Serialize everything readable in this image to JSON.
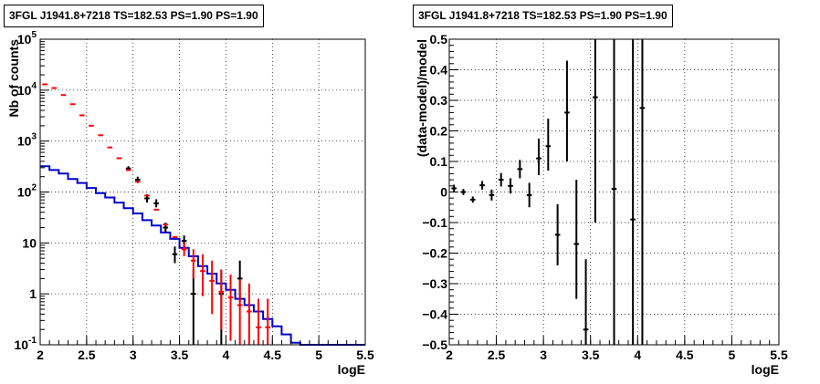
{
  "chart_data": [
    {
      "type": "line",
      "title": "3FGL J1941.8+7218 TS=182.53 PS=1.90 PS=1.90",
      "xlabel": "logE",
      "ylabel": "Nb of counts",
      "xlim": [
        2,
        5.5
      ],
      "ylim": [
        0.1,
        100000
      ],
      "yscale": "log",
      "grid": true,
      "x_ticks": [
        "2",
        "2.5",
        "3",
        "3.5",
        "4",
        "4.5",
        "5",
        "5.5"
      ],
      "y_ticks": [
        {
          "base": "10",
          "exp": "-1"
        },
        {
          "base": "1",
          "exp": ""
        },
        {
          "base": "10",
          "exp": ""
        },
        {
          "base": "10",
          "exp": "2"
        },
        {
          "base": "10",
          "exp": "3"
        },
        {
          "base": "10",
          "exp": "4"
        },
        {
          "base": "10",
          "exp": "5"
        }
      ],
      "bin_edges": [
        2.0,
        2.1,
        2.2,
        2.3,
        2.4,
        2.5,
        2.6,
        2.7,
        2.8,
        2.9,
        3.0,
        3.1,
        3.2,
        3.3,
        3.4,
        3.5,
        3.6,
        3.7,
        3.8,
        3.9,
        4.0,
        4.1,
        4.2,
        4.3,
        4.4,
        4.5,
        4.6,
        4.7,
        4.8,
        4.9,
        5.0,
        5.1,
        5.2,
        5.3,
        5.4,
        5.5
      ],
      "series": [
        {
          "role": "model-total",
          "color": "#ff0000",
          "points": [
            {
              "x": 2.05,
              "y": 13000,
              "lo": 13000,
              "hi": 13000
            },
            {
              "x": 2.15,
              "y": 11000,
              "lo": 11000,
              "hi": 11000
            },
            {
              "x": 2.25,
              "y": 8000,
              "lo": 8000,
              "hi": 8000
            },
            {
              "x": 2.35,
              "y": 5300,
              "lo": 5300,
              "hi": 5300
            },
            {
              "x": 2.45,
              "y": 3200,
              "lo": 3200,
              "hi": 3200
            },
            {
              "x": 2.55,
              "y": 2000,
              "lo": 2000,
              "hi": 2000
            },
            {
              "x": 2.65,
              "y": 1300,
              "lo": 1300,
              "hi": 1300
            },
            {
              "x": 2.75,
              "y": 750,
              "lo": 750,
              "hi": 750
            },
            {
              "x": 2.85,
              "y": 460,
              "lo": 460,
              "hi": 460
            },
            {
              "x": 2.95,
              "y": 270,
              "lo": 270,
              "hi": 270
            },
            {
              "x": 3.05,
              "y": 160,
              "lo": 160,
              "hi": 160
            },
            {
              "x": 3.15,
              "y": 85,
              "lo": 85,
              "hi": 85
            },
            {
              "x": 3.25,
              "y": 45,
              "lo": 45,
              "hi": 45
            },
            {
              "x": 3.35,
              "y": 23,
              "lo": 23,
              "hi": 23
            },
            {
              "x": 3.45,
              "y": 13,
              "lo": 13,
              "hi": 13
            },
            {
              "x": 3.55,
              "y": 7.5,
              "lo": 5.5,
              "hi": 10
            },
            {
              "x": 3.65,
              "y": 4.5,
              "lo": 2,
              "hi": 7.5
            },
            {
              "x": 3.75,
              "y": 2.8,
              "lo": 0.9,
              "hi": 6
            },
            {
              "x": 3.85,
              "y": 1.8,
              "lo": 0.4,
              "hi": 4.5
            },
            {
              "x": 3.95,
              "y": 1.1,
              "lo": 0.2,
              "hi": 3
            },
            {
              "x": 4.05,
              "y": 0.85,
              "lo": 0.12,
              "hi": 2.4
            },
            {
              "x": 4.15,
              "y": 0.6,
              "lo": 0.1,
              "hi": 1.9
            },
            {
              "x": 4.25,
              "y": 0.45,
              "lo": 0.1,
              "hi": 1.6
            },
            {
              "x": 4.35,
              "y": 0.22,
              "lo": 0.1,
              "hi": 0.8
            },
            {
              "x": 4.45,
              "y": 0.22,
              "lo": 0.1,
              "hi": 0.8
            }
          ]
        },
        {
          "role": "data",
          "color": "#000000",
          "points": [
            {
              "x": 2.95,
              "y": 290,
              "lo": 260,
              "hi": 320
            },
            {
              "x": 3.05,
              "y": 175,
              "lo": 150,
              "hi": 200
            },
            {
              "x": 3.15,
              "y": 75,
              "lo": 62,
              "hi": 90
            },
            {
              "x": 3.25,
              "y": 60,
              "lo": 50,
              "hi": 72
            },
            {
              "x": 3.35,
              "y": 20,
              "lo": 16,
              "hi": 25
            },
            {
              "x": 3.45,
              "y": 6,
              "lo": 4,
              "hi": 8.5
            },
            {
              "x": 3.55,
              "y": 11,
              "lo": 8,
              "hi": 14
            },
            {
              "x": 3.65,
              "y": 1,
              "lo": 0.1,
              "hi": 3
            },
            {
              "x": 3.95,
              "y": 1,
              "lo": 0.1,
              "hi": 3
            },
            {
              "x": 4.15,
              "y": 2,
              "lo": 0.7,
              "hi": 4.5
            }
          ]
        },
        {
          "role": "model-source",
          "color": "#0000cc",
          "drawstyle": "steps",
          "values": [
            320,
            270,
            230,
            180,
            150,
            120,
            95,
            78,
            62,
            48,
            38,
            28,
            22,
            16,
            12,
            8,
            5.5,
            3.5,
            2.5,
            1.6,
            1.2,
            0.8,
            0.6,
            0.45,
            0.32,
            0.23,
            0.16,
            0.11,
            0.1,
            0.1,
            0.1,
            0.1,
            0.1,
            0.1,
            0.1
          ]
        }
      ]
    },
    {
      "type": "scatter",
      "title": "3FGL J1941.8+7218 TS=182.53 PS=1.90 PS=1.90",
      "xlabel": "logE",
      "ylabel": "(data-model)/model",
      "xlim": [
        2,
        5.5
      ],
      "ylim": [
        -0.5,
        0.5
      ],
      "grid": true,
      "x_ticks": [
        "2",
        "2.5",
        "3",
        "3.5",
        "4",
        "4.5",
        "5",
        "5.5"
      ],
      "y_ticks": [
        "−0.5",
        "−0.4",
        "−0.3",
        "−0.2",
        "−0.1",
        "0",
        "0.1",
        "0.2",
        "0.3",
        "0.4",
        "0.5"
      ],
      "series": [
        {
          "role": "residual",
          "color": "#000000",
          "points": [
            {
              "x": 2.05,
              "y": 0.012,
              "lo": 0.0,
              "hi": 0.024
            },
            {
              "x": 2.15,
              "y": 0.0,
              "lo": -0.01,
              "hi": 0.01
            },
            {
              "x": 2.25,
              "y": -0.025,
              "lo": -0.035,
              "hi": -0.015
            },
            {
              "x": 2.35,
              "y": 0.022,
              "lo": 0.008,
              "hi": 0.036
            },
            {
              "x": 2.45,
              "y": -0.01,
              "lo": -0.028,
              "hi": 0.008
            },
            {
              "x": 2.55,
              "y": 0.04,
              "lo": 0.018,
              "hi": 0.062
            },
            {
              "x": 2.65,
              "y": 0.02,
              "lo": -0.005,
              "hi": 0.045
            },
            {
              "x": 2.75,
              "y": 0.075,
              "lo": 0.045,
              "hi": 0.105
            },
            {
              "x": 2.85,
              "y": -0.01,
              "lo": -0.05,
              "hi": 0.03
            },
            {
              "x": 2.95,
              "y": 0.11,
              "lo": 0.055,
              "hi": 0.175
            },
            {
              "x": 3.05,
              "y": 0.15,
              "lo": 0.07,
              "hi": 0.24
            },
            {
              "x": 3.15,
              "y": -0.14,
              "lo": -0.24,
              "hi": -0.04
            },
            {
              "x": 3.25,
              "y": 0.26,
              "lo": 0.1,
              "hi": 0.43
            },
            {
              "x": 3.35,
              "y": -0.17,
              "lo": -0.35,
              "hi": 0.04
            },
            {
              "x": 3.45,
              "y": -0.45,
              "lo": -0.5,
              "hi": -0.22
            },
            {
              "x": 3.55,
              "y": 0.31,
              "lo": -0.1,
              "hi": 0.5
            },
            {
              "x": 3.75,
              "y": 0.01,
              "lo": -0.5,
              "hi": 0.5
            },
            {
              "x": 3.95,
              "y": -0.09,
              "lo": -0.5,
              "hi": 0.5
            },
            {
              "x": 4.05,
              "y": 0.275,
              "lo": -0.5,
              "hi": 0.5
            }
          ]
        }
      ]
    }
  ]
}
